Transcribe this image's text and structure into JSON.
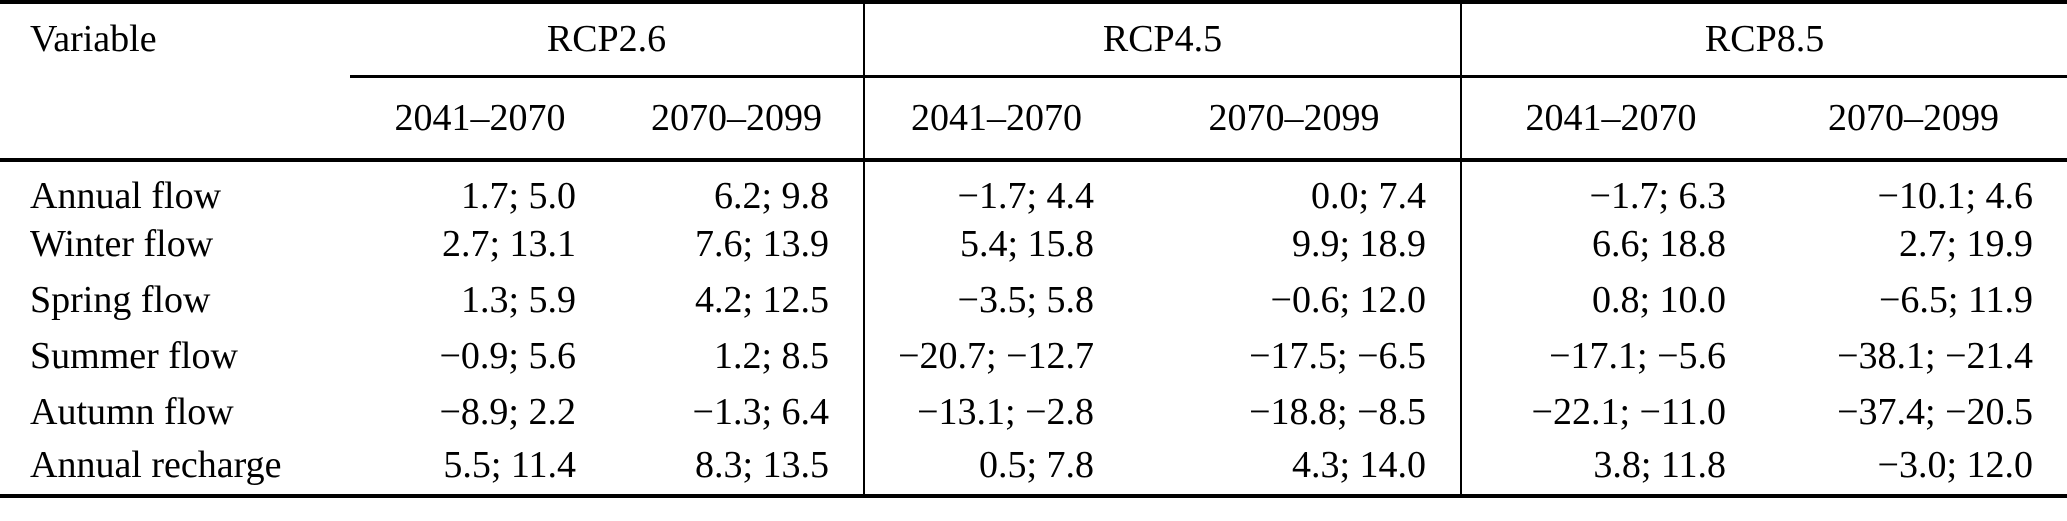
{
  "table": {
    "variable_header": "Variable",
    "groups": [
      {
        "label": "RCP2.6"
      },
      {
        "label": "RCP4.5"
      },
      {
        "label": "RCP8.5"
      }
    ],
    "period_headers": [
      "2041–2070",
      "2070–2099",
      "2041–2070",
      "2070–2099",
      "2041–2070",
      "2070–2099"
    ],
    "rows": [
      {
        "variable": "Annual flow",
        "values": [
          "1.7; 5.0",
          "6.2; 9.8",
          "−1.7; 4.4",
          "0.0; 7.4",
          "−1.7; 6.3",
          "−10.1; 4.6"
        ]
      },
      {
        "variable": "Winter flow",
        "values": [
          "2.7; 13.1",
          "7.6; 13.9",
          "5.4; 15.8",
          "9.9; 18.9",
          "6.6; 18.8",
          "2.7; 19.9"
        ]
      },
      {
        "variable": "Spring flow",
        "values": [
          "1.3; 5.9",
          "4.2; 12.5",
          "−3.5; 5.8",
          "−0.6; 12.0",
          "0.8; 10.0",
          "−6.5; 11.9"
        ]
      },
      {
        "variable": "Summer flow",
        "values": [
          "−0.9; 5.6",
          "1.2; 8.5",
          "−20.7; −12.7",
          "−17.5; −6.5",
          "−17.1; −5.6",
          "−38.1; −21.4"
        ]
      },
      {
        "variable": "Autumn flow",
        "values": [
          "−8.9; 2.2",
          "−1.3; 6.4",
          "−13.1; −2.8",
          "−18.8; −8.5",
          "−22.1; −11.0",
          "−37.4; −20.5"
        ]
      },
      {
        "variable": "Annual recharge",
        "values": [
          "5.5; 11.4",
          "8.3; 13.5",
          "0.5; 7.8",
          "4.3; 14.0",
          "3.8; 11.8",
          "−3.0; 12.0"
        ]
      }
    ]
  },
  "colors": {
    "text": "#000000",
    "background": "#ffffff",
    "rule": "#000000"
  }
}
